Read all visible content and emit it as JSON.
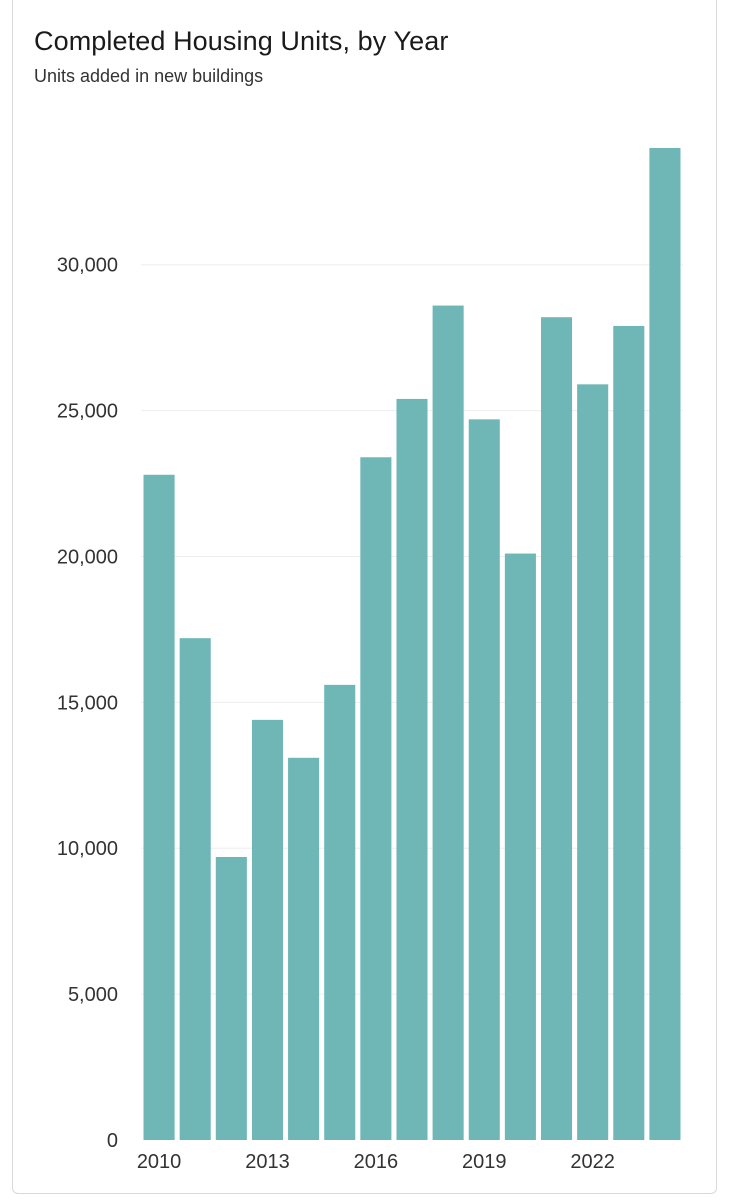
{
  "chart_data": {
    "type": "bar",
    "title": "Completed Housing Units, by Year",
    "subtitle": "Units added in new buildings",
    "categories": [
      "2010",
      "2011",
      "2012",
      "2013",
      "2014",
      "2015",
      "2016",
      "2017",
      "2018",
      "2019",
      "2020",
      "2021",
      "2022",
      "2023",
      "2024"
    ],
    "values": [
      22800,
      17200,
      9700,
      14400,
      13100,
      15600,
      23400,
      25400,
      28600,
      24700,
      20100,
      28200,
      25900,
      27900,
      34000
    ],
    "x_tick_labels": [
      "2010",
      "2013",
      "2016",
      "2019",
      "2022"
    ],
    "y_ticks": [
      0,
      5000,
      10000,
      15000,
      20000,
      25000,
      30000
    ],
    "y_tick_labels": [
      "0",
      "5,000",
      "10,000",
      "15,000",
      "20,000",
      "25,000",
      "30,000"
    ],
    "ylim": [
      0,
      34000
    ],
    "xlabel": "",
    "ylabel": "",
    "grid": true,
    "bar_color": "#6fb7b7"
  }
}
